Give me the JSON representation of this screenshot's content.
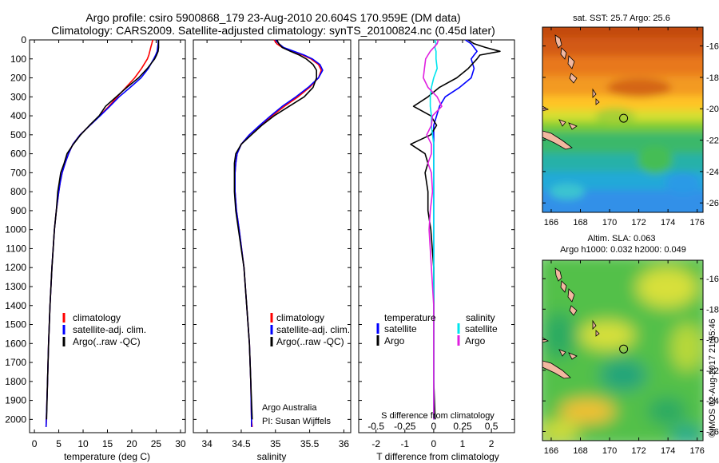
{
  "header": {
    "title_line1": "Argo profile: csiro 5900868_179 23-Aug-2010 20.604S 170.959E (DM data)",
    "title_line2": "Climatology: CARS2009. Satellite-adjusted climatology: synTS_20100824.nc (0.45d later)"
  },
  "colors": {
    "climatology": "#ff0000",
    "satellite": "#0000ff",
    "argo": "#000000",
    "satellite_salinity": "#00e5ee",
    "argo_salinity": "#e020e0",
    "land": "#f2b8a0"
  },
  "depth_axis": {
    "ticks": [
      "0",
      "100",
      "200",
      "300",
      "400",
      "500",
      "600",
      "700",
      "800",
      "900",
      "1000",
      "1100",
      "1200",
      "1300",
      "1400",
      "1500",
      "1600",
      "1700",
      "1800",
      "1900",
      "2000"
    ],
    "range": [
      0,
      2070
    ]
  },
  "chart_data": [
    {
      "id": "temperature",
      "type": "line",
      "xlabel": "temperature (deg C)",
      "xlim": [
        -1,
        31
      ],
      "xticks": [
        "0",
        "5",
        "10",
        "15",
        "20",
        "25",
        "30"
      ],
      "xtick_values": [
        0,
        5,
        10,
        15,
        20,
        25,
        30
      ],
      "legend": [
        "climatology",
        "satellite-adj. clim.",
        "Argo(..raw -QC)"
      ],
      "depths": [
        0,
        20,
        40,
        60,
        80,
        100,
        150,
        200,
        250,
        300,
        350,
        400,
        450,
        500,
        550,
        600,
        650,
        700,
        750,
        800,
        900,
        1000,
        1200,
        1400,
        1600,
        1800,
        2000,
        2040
      ],
      "series": [
        {
          "name": "climatology",
          "values": [
            24.3,
            24.1,
            23.9,
            23.7,
            23.5,
            23.2,
            22.0,
            20.6,
            18.8,
            17.0,
            15.3,
            13.4,
            11.4,
            9.4,
            7.9,
            7.0,
            6.3,
            5.7,
            5.3,
            5.0,
            4.5,
            4.1,
            3.6,
            3.2,
            2.9,
            2.7,
            2.45,
            2.4
          ]
        },
        {
          "name": "satellite",
          "values": [
            25.4,
            25.4,
            25.3,
            25.2,
            24.9,
            24.5,
            23.4,
            21.9,
            19.7,
            17.4,
            15.5,
            13.5,
            11.4,
            9.4,
            7.9,
            7.0,
            6.3,
            5.7,
            5.3,
            5.0,
            4.5,
            4.1,
            3.6,
            3.2,
            2.9,
            2.7,
            2.45,
            2.4
          ]
        },
        {
          "name": "Argo",
          "values": [
            25.5,
            25.5,
            25.5,
            25.4,
            25.1,
            24.7,
            23.2,
            21.4,
            19.0,
            16.8,
            14.6,
            13.3,
            11.3,
            9.5,
            8.0,
            6.7,
            6.1,
            5.4,
            5.1,
            4.8,
            4.5,
            4.1,
            3.6,
            3.2,
            2.9,
            2.7,
            2.5,
            null
          ]
        }
      ]
    },
    {
      "id": "salinity",
      "type": "line",
      "xlabel": "salinity",
      "xlim": [
        33.8,
        36.1
      ],
      "xticks": [
        "34",
        "34.5",
        "35",
        "35.5",
        "36"
      ],
      "xtick_values": [
        34,
        34.5,
        35,
        35.5,
        36
      ],
      "legend": [
        "climatology",
        "satellite-adj. clim.",
        "Argo(..raw -QC)"
      ],
      "annotation": [
        "Argo Australia",
        "PI: Susan Wijffels"
      ],
      "depths": [
        0,
        20,
        40,
        60,
        80,
        100,
        130,
        160,
        200,
        250,
        300,
        350,
        400,
        450,
        500,
        550,
        600,
        650,
        700,
        800,
        900,
        1000,
        1200,
        1400,
        1600,
        1800,
        2000,
        2040
      ],
      "series": [
        {
          "name": "climatology",
          "values": [
            34.98,
            35.02,
            35.1,
            35.25,
            35.4,
            35.52,
            35.63,
            35.67,
            35.63,
            35.5,
            35.33,
            35.13,
            34.95,
            34.78,
            34.62,
            34.5,
            34.44,
            34.42,
            34.41,
            34.41,
            34.43,
            34.47,
            34.54,
            34.58,
            34.62,
            34.64,
            34.65,
            34.66
          ]
        },
        {
          "name": "satellite",
          "values": [
            35.0,
            35.05,
            35.12,
            35.27,
            35.42,
            35.54,
            35.65,
            35.69,
            35.63,
            35.48,
            35.3,
            35.1,
            34.93,
            34.77,
            34.62,
            34.5,
            34.44,
            34.42,
            34.41,
            34.41,
            34.43,
            34.47,
            34.54,
            34.58,
            34.62,
            34.64,
            34.65,
            34.65
          ]
        },
        {
          "name": "Argo",
          "values": [
            35.02,
            35.05,
            35.1,
            35.22,
            35.35,
            35.45,
            35.55,
            35.6,
            35.6,
            35.55,
            35.42,
            35.2,
            34.98,
            34.8,
            34.65,
            34.5,
            34.42,
            34.4,
            34.4,
            34.4,
            34.42,
            34.46,
            34.54,
            34.58,
            34.62,
            34.64,
            34.66,
            null
          ]
        }
      ]
    },
    {
      "id": "differences",
      "type": "line",
      "xlabel": "T difference from climatology",
      "xlabel_top": "S difference from climatology",
      "xlim": [
        -2.6,
        2.8
      ],
      "xticks": [
        "-2",
        "-1",
        "0",
        "1",
        "2"
      ],
      "xtick_values": [
        -2,
        -1,
        0,
        1,
        2
      ],
      "s_ticks": [
        "-0.5",
        "-0.25",
        "0",
        "0.25",
        "0.5"
      ],
      "s_tick_values": [
        -0.5,
        -0.25,
        0,
        0.25,
        0.5
      ],
      "legend_headers": [
        "temperature",
        "salinity"
      ],
      "legend": [
        "satellite",
        "Argo",
        "satellite",
        "Argo"
      ],
      "depths": [
        0,
        20,
        40,
        60,
        80,
        100,
        150,
        200,
        250,
        300,
        350,
        400,
        450,
        500,
        550,
        600,
        650,
        700,
        800,
        900,
        1000,
        1200,
        1400,
        1600,
        1800,
        2000
      ],
      "series": [
        {
          "name": "T satellite",
          "values": [
            1.1,
            1.3,
            1.4,
            1.5,
            1.4,
            1.3,
            1.4,
            1.3,
            0.9,
            0.4,
            0.2,
            0.1,
            0.0,
            0.0,
            0.0,
            0.0,
            0.0,
            0.0,
            0.0,
            0.0,
            0.0,
            0.0,
            0.0,
            0.0,
            0.0,
            0.0
          ]
        },
        {
          "name": "T Argo",
          "values": [
            1.2,
            1.4,
            1.8,
            2.3,
            1.6,
            1.5,
            1.2,
            0.8,
            0.2,
            -0.2,
            -0.7,
            -0.1,
            0.1,
            -0.1,
            -0.8,
            -0.3,
            -0.2,
            -0.3,
            -0.2,
            -0.2,
            -0.1,
            0.0,
            0.0,
            0.0,
            0.0,
            0.05
          ]
        },
        {
          "name": "S satellite",
          "values": [
            0.01,
            0.02,
            0.01,
            0.02,
            0.02,
            0.02,
            0.03,
            0.0,
            -0.02,
            -0.03,
            -0.03,
            -0.02,
            -0.02,
            -0.01,
            0.0,
            0.0,
            0.0,
            0.0,
            0.0,
            0.0,
            0.0,
            0.0,
            0.0,
            0.0,
            0.0,
            0.0
          ]
        },
        {
          "name": "S Argo",
          "values": [
            0.04,
            0.03,
            0.0,
            -0.03,
            -0.05,
            -0.07,
            -0.08,
            -0.09,
            -0.05,
            0.03,
            0.07,
            -0.01,
            -0.02,
            -0.06,
            -0.02,
            -0.02,
            -0.05,
            -0.02,
            -0.01,
            -0.03,
            -0.04,
            -0.02,
            0.0,
            0.0,
            0.0,
            0.0
          ]
        }
      ]
    },
    {
      "id": "sst_map",
      "type": "heatmap",
      "title": "sat. SST: 25.7 Argo: 25.6",
      "xticks": [
        "166",
        "168",
        "170",
        "172",
        "174",
        "176"
      ],
      "xtick_values": [
        166,
        168,
        170,
        172,
        174,
        176
      ],
      "yticks": [
        "-16",
        "-18",
        "-20",
        "-22",
        "-24",
        "-26"
      ],
      "ytick_values": [
        -16,
        -18,
        -20,
        -22,
        -24,
        -26
      ],
      "xlim": [
        165.4,
        176.4
      ],
      "ylim": [
        -26.6,
        -14.8
      ],
      "profile_location": [
        170.959,
        -20.604
      ]
    },
    {
      "id": "sla_map",
      "type": "heatmap",
      "title": "Altim. SLA: 0.063",
      "subtitle": "Argo h1000: 0.032 h2000: 0.049",
      "xticks": [
        "166",
        "168",
        "170",
        "172",
        "174",
        "176"
      ],
      "xtick_values": [
        166,
        168,
        170,
        172,
        174,
        176
      ],
      "yticks": [
        "-16",
        "-18",
        "-20",
        "-22",
        "-24",
        "-26"
      ],
      "ytick_values": [
        -16,
        -18,
        -20,
        -22,
        -24,
        -26
      ],
      "xlim": [
        165.4,
        176.4
      ],
      "ylim": [
        -26.6,
        -14.8
      ],
      "profile_location": [
        170.959,
        -20.604
      ]
    }
  ],
  "footer": {
    "credit": "©IMOS 02-Aug-2017 21:55:46"
  }
}
